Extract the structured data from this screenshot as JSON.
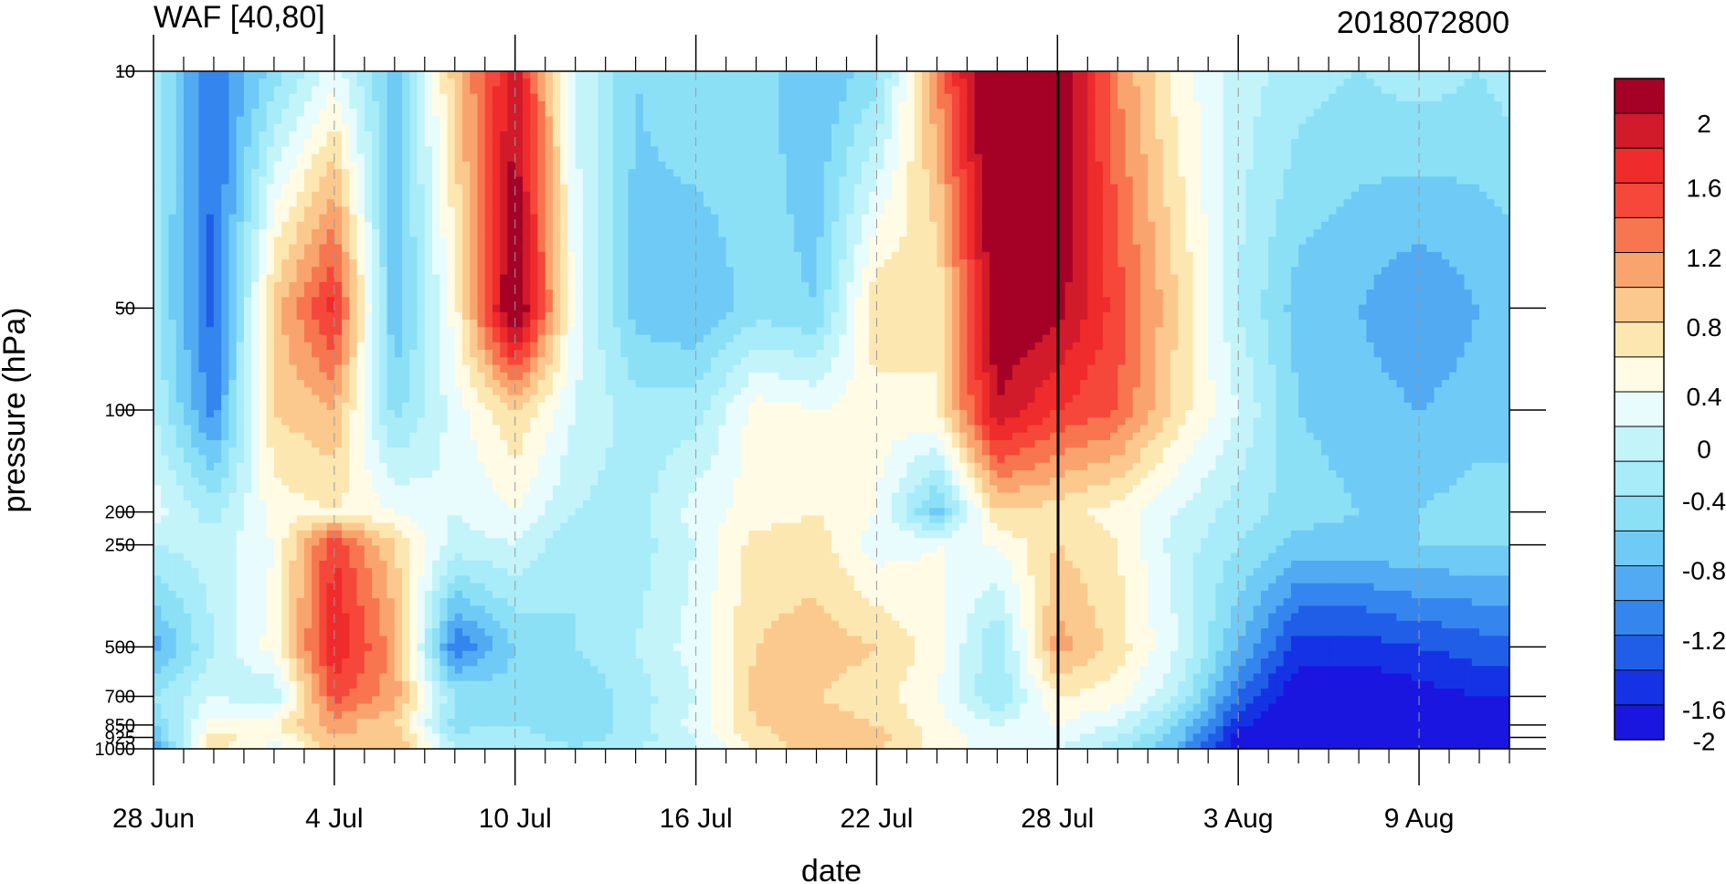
{
  "chart_data": {
    "type": "heatmap",
    "title": "WAF [40,80]",
    "subtitle": "2018072800",
    "xlabel": "date",
    "ylabel": "pressure (hPa)",
    "x_tick_labels": [
      "28 Jun",
      "4 Jul",
      "10 Jul",
      "16 Jul",
      "22 Jul",
      "28 Jul",
      "3 Aug",
      "9 Aug"
    ],
    "y_tick_labels": [
      "10",
      "50",
      "100",
      "200",
      "250",
      "500",
      "700",
      "850",
      "925",
      "1000"
    ],
    "y_log_scale": true,
    "ylim": [
      1000,
      10
    ],
    "colorbar_tick_labels": [
      "2",
      "1.6",
      "1.2",
      "0.8",
      "0.4",
      "0",
      "-0.4",
      "-0.8",
      "-1.2",
      "-1.6",
      "-2"
    ],
    "colorbar_colors": [
      "#a50026",
      "#d11a2a",
      "#ef2b2b",
      "#f5473a",
      "#f7754f",
      "#f9a46f",
      "#fbc98e",
      "#fde7b0",
      "#fffbe5",
      "#e8fbfd",
      "#c3f4fa",
      "#a7ecf8",
      "#8ce0f6",
      "#6fcbf5",
      "#52aaf2",
      "#3486ee",
      "#215ee8",
      "#1533e4",
      "#1a16e0"
    ],
    "current_day_marker": "28 Jul",
    "field": {
      "dates_day_index": [
        0,
        2,
        4,
        6,
        8,
        10,
        12,
        14,
        16,
        18,
        20,
        22,
        24,
        26,
        28,
        30,
        32,
        34,
        36,
        38,
        40,
        42,
        44,
        45
      ],
      "pressure_levels": [
        10,
        50,
        100,
        200,
        250,
        500,
        700,
        850,
        925,
        1000
      ],
      "values": [
        [
          -0.3,
          -1.2,
          -0.5,
          0.1,
          -0.7,
          0.7,
          1.7,
          0.0,
          -0.6,
          -0.4,
          -0.5,
          -0.8,
          -0.5,
          1.0,
          2.4,
          2.1,
          1.0,
          0.3,
          -0.1,
          -0.3,
          -0.4,
          -0.3,
          -0.4,
          -0.3
        ],
        [
          -0.3,
          -1.3,
          0.7,
          1.5,
          -0.8,
          0.3,
          2.2,
          0.1,
          -0.7,
          -0.8,
          -0.5,
          -0.6,
          0.6,
          0.4,
          2.0,
          1.9,
          1.3,
          0.6,
          -0.2,
          -0.7,
          -0.8,
          -1.0,
          -0.8,
          -0.8
        ],
        [
          -0.2,
          -1.1,
          0.6,
          0.8,
          -0.5,
          0.1,
          0.6,
          0.0,
          -0.3,
          -0.3,
          0.3,
          0.2,
          0.3,
          0.4,
          1.8,
          1.4,
          1.2,
          0.5,
          0.0,
          -0.6,
          -0.7,
          -0.8,
          -0.7,
          -0.7
        ],
        [
          0.1,
          -0.3,
          0.3,
          0.4,
          0.2,
          0.0,
          0.2,
          -0.2,
          -0.3,
          0.1,
          0.3,
          0.4,
          0.2,
          -0.7,
          0.6,
          0.5,
          0.3,
          0.0,
          -0.3,
          -0.5,
          -0.6,
          -0.6,
          -0.5,
          -0.5
        ],
        [
          -0.2,
          -0.1,
          0.2,
          1.4,
          0.6,
          -0.1,
          0.0,
          -0.4,
          -0.3,
          0.0,
          0.5,
          0.5,
          0.1,
          0.2,
          0.2,
          0.6,
          0.4,
          -0.1,
          -0.4,
          -0.7,
          -0.7,
          -0.6,
          -0.6,
          -0.6
        ],
        [
          -0.9,
          -0.2,
          0.3,
          1.6,
          0.9,
          -1.2,
          -0.6,
          -0.4,
          -0.2,
          0.1,
          0.6,
          0.7,
          0.6,
          0.3,
          -0.4,
          0.9,
          0.5,
          0.0,
          -0.8,
          -1.5,
          -1.5,
          -1.4,
          -1.3,
          -1.3
        ],
        [
          -0.4,
          0.0,
          -0.2,
          1.3,
          0.9,
          -0.4,
          -0.5,
          -0.6,
          -0.3,
          0.0,
          0.7,
          0.6,
          0.5,
          0.2,
          -0.4,
          0.4,
          0.3,
          -0.2,
          -1.2,
          -1.8,
          -1.8,
          -1.7,
          -1.6,
          -1.6
        ],
        [
          -0.6,
          0.3,
          0.4,
          0.9,
          0.6,
          -0.5,
          -0.4,
          -0.6,
          -0.3,
          0.1,
          0.6,
          0.7,
          0.6,
          0.3,
          0.0,
          0.2,
          0.0,
          -0.6,
          -1.5,
          -2.0,
          -2.0,
          -1.9,
          -1.8,
          -1.8
        ],
        [
          -0.8,
          0.5,
          0.2,
          0.8,
          0.8,
          -0.3,
          -0.3,
          -0.5,
          -0.3,
          0.0,
          0.5,
          0.8,
          0.7,
          0.3,
          0.1,
          0.1,
          -0.2,
          -0.7,
          -1.7,
          -2.0,
          -2.1,
          -2.1,
          -2.0,
          -2.0
        ],
        [
          -1.0,
          0.5,
          0.1,
          0.7,
          0.8,
          -0.2,
          -0.2,
          -0.4,
          -0.2,
          0.0,
          0.4,
          0.7,
          0.6,
          0.3,
          0.1,
          0.0,
          -0.3,
          -0.9,
          -1.8,
          -2.1,
          -2.2,
          -2.2,
          -2.1,
          -2.1
        ]
      ]
    }
  }
}
